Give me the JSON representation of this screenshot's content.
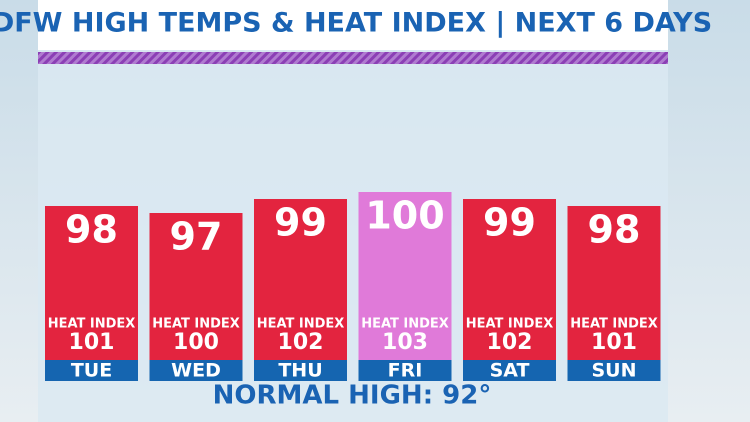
{
  "chart_data": {
    "type": "bar",
    "title": "DFW HIGH TEMPS & HEAT INDEX | NEXT 6 DAYS",
    "categories": [
      "TUE",
      "WED",
      "THU",
      "FRI",
      "SAT",
      "SUN"
    ],
    "values": [
      98,
      97,
      99,
      100,
      99,
      98
    ],
    "colors": [
      "#e3243f",
      "#e3243f",
      "#e3243f",
      "#e07ad9",
      "#e3243f",
      "#e3243f"
    ],
    "heat_index_label": "HEAT INDEX",
    "heat_index": [
      101,
      100,
      102,
      103,
      102,
      101
    ],
    "footer": "NORMAL HIGH: 92°"
  }
}
